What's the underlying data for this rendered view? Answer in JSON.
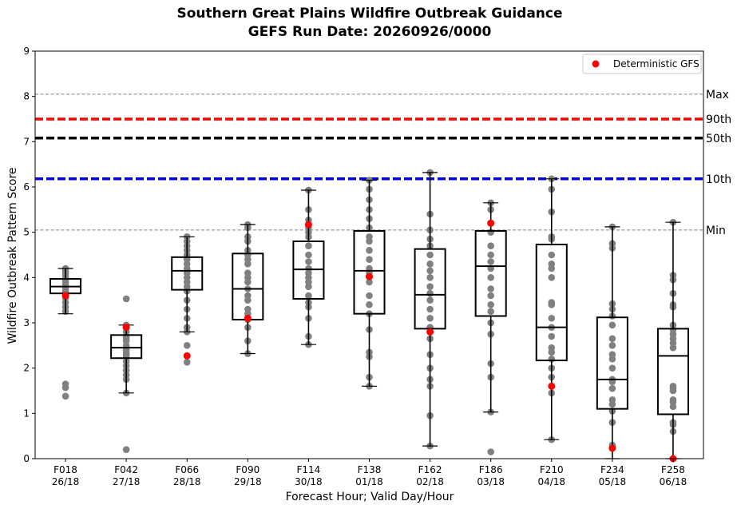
{
  "chart_data": {
    "type": "box",
    "title": "Southern Great Plains Wildfire Outbreak Guidance",
    "subtitle": "GEFS Run Date: 20260926/0000",
    "xlabel": "Forecast Hour; Valid Day/Hour",
    "ylabel": "Wildfire Outbreak Pattern Score",
    "ylim": [
      0,
      9
    ],
    "yticks": [
      "0",
      "1",
      "2",
      "3",
      "4",
      "5",
      "6",
      "7",
      "8",
      "9"
    ],
    "categories": [
      {
        "hour": "F018",
        "valid": "26/18"
      },
      {
        "hour": "F042",
        "valid": "27/18"
      },
      {
        "hour": "F066",
        "valid": "28/18"
      },
      {
        "hour": "F090",
        "valid": "29/18"
      },
      {
        "hour": "F114",
        "valid": "30/18"
      },
      {
        "hour": "F138",
        "valid": "01/18"
      },
      {
        "hour": "F162",
        "valid": "02/18"
      },
      {
        "hour": "F186",
        "valid": "03/18"
      },
      {
        "hour": "F210",
        "valid": "04/18"
      },
      {
        "hour": "F234",
        "valid": "05/18"
      },
      {
        "hour": "F258",
        "valid": "06/18"
      }
    ],
    "boxes": [
      {
        "whislo": 3.2,
        "q1": 3.65,
        "med": 3.8,
        "q3": 3.97,
        "whishi": 4.2
      },
      {
        "whislo": 1.45,
        "q1": 2.22,
        "med": 2.45,
        "q3": 2.73,
        "whishi": 2.95
      },
      {
        "whislo": 2.8,
        "q1": 3.73,
        "med": 4.15,
        "q3": 4.45,
        "whishi": 4.9
      },
      {
        "whislo": 2.32,
        "q1": 3.07,
        "med": 3.75,
        "q3": 4.53,
        "whishi": 5.17
      },
      {
        "whislo": 2.52,
        "q1": 3.53,
        "med": 4.18,
        "q3": 4.8,
        "whishi": 5.93
      },
      {
        "whislo": 1.6,
        "q1": 3.2,
        "med": 4.15,
        "q3": 5.03,
        "whishi": 6.15
      },
      {
        "whislo": 0.28,
        "q1": 2.87,
        "med": 3.62,
        "q3": 4.63,
        "whishi": 6.32
      },
      {
        "whislo": 1.03,
        "q1": 3.15,
        "med": 4.25,
        "q3": 5.03,
        "whishi": 5.65
      },
      {
        "whislo": 0.42,
        "q1": 2.17,
        "med": 2.9,
        "q3": 4.73,
        "whishi": 6.18
      },
      {
        "whislo": 0.0,
        "q1": 1.1,
        "med": 1.75,
        "q3": 3.12,
        "whishi": 5.12
      },
      {
        "whislo": 0.0,
        "q1": 0.98,
        "med": 2.27,
        "q3": 2.87,
        "whishi": 5.22
      }
    ],
    "members": [
      [
        4.2,
        4.15,
        4.1,
        4.05,
        4.0,
        3.95,
        3.9,
        3.85,
        3.8,
        3.8,
        3.75,
        3.7,
        3.65,
        3.55,
        3.45,
        3.35,
        3.25,
        1.65,
        1.57,
        1.38
      ],
      [
        3.53,
        2.95,
        2.9,
        2.8,
        2.7,
        2.65,
        2.6,
        2.5,
        2.45,
        2.4,
        2.35,
        2.3,
        2.25,
        2.15,
        2.05,
        1.95,
        1.85,
        1.75,
        1.45,
        0.2
      ],
      [
        4.9,
        4.8,
        4.7,
        4.6,
        4.5,
        4.4,
        4.3,
        4.2,
        4.15,
        4.1,
        4.0,
        3.9,
        3.8,
        3.7,
        3.5,
        3.3,
        3.1,
        2.9,
        2.8,
        2.5,
        2.13
      ],
      [
        5.17,
        5.1,
        4.9,
        4.8,
        4.6,
        4.5,
        4.4,
        4.3,
        4.1,
        4.0,
        3.9,
        3.75,
        3.6,
        3.5,
        3.3,
        3.2,
        3.07,
        2.9,
        2.6,
        2.32
      ],
      [
        5.93,
        5.5,
        5.27,
        5.1,
        5.0,
        4.9,
        4.7,
        4.5,
        4.35,
        4.2,
        4.1,
        4.0,
        3.9,
        3.8,
        3.6,
        3.45,
        3.35,
        3.1,
        2.7,
        2.52
      ],
      [
        6.15,
        5.95,
        5.72,
        5.5,
        5.3,
        5.1,
        4.9,
        4.8,
        4.6,
        4.4,
        4.2,
        4.1,
        3.9,
        3.6,
        3.4,
        3.2,
        2.85,
        2.35,
        2.25,
        1.8,
        1.6
      ],
      [
        6.32,
        5.4,
        5.05,
        4.85,
        4.7,
        4.5,
        4.3,
        4.15,
        4.0,
        3.8,
        3.65,
        3.5,
        3.3,
        3.1,
        2.9,
        2.65,
        2.3,
        2.0,
        1.75,
        1.6,
        0.95,
        0.28
      ],
      [
        5.65,
        5.5,
        5.2,
        5.0,
        4.7,
        4.5,
        4.35,
        4.2,
        4.0,
        3.75,
        3.6,
        3.4,
        3.25,
        3.0,
        2.75,
        2.1,
        1.8,
        1.03,
        0.15
      ],
      [
        6.18,
        5.95,
        5.45,
        4.9,
        4.85,
        4.5,
        4.3,
        4.2,
        4.0,
        3.45,
        3.4,
        3.1,
        2.9,
        2.7,
        2.45,
        2.35,
        2.2,
        2.0,
        1.8,
        1.6,
        1.45,
        0.42
      ],
      [
        5.12,
        4.75,
        4.65,
        3.42,
        3.3,
        3.15,
        2.95,
        2.65,
        2.5,
        2.3,
        2.2,
        2.0,
        1.75,
        1.7,
        1.55,
        1.3,
        1.2,
        1.05,
        0.8,
        0.3,
        0.25
      ],
      [
        5.22,
        4.05,
        3.95,
        3.65,
        3.4,
        3.35,
        2.95,
        2.85,
        2.75,
        2.65,
        2.55,
        2.45,
        1.6,
        1.55,
        1.5,
        1.3,
        1.25,
        1.15,
        0.8,
        0.75,
        0.6
      ]
    ],
    "deterministic": [
      3.6,
      2.9,
      2.27,
      3.1,
      5.17,
      4.02,
      2.8,
      5.2,
      1.6,
      0.23,
      0.0
    ],
    "reference_lines": [
      {
        "label": "Max",
        "value": 8.05,
        "color": "#808080",
        "style": "thin-dashed"
      },
      {
        "label": "90th",
        "value": 7.5,
        "color": "#ff0000",
        "style": "thick-dashed"
      },
      {
        "label": "50th",
        "value": 7.08,
        "color": "#000000",
        "style": "thick-dashed"
      },
      {
        "label": "10th",
        "value": 6.18,
        "color": "#0000dd",
        "style": "thick-dashed"
      },
      {
        "label": "Min",
        "value": 5.05,
        "color": "#808080",
        "style": "thin-dashed"
      }
    ],
    "legend": {
      "label": "Deterministic GFS",
      "placement": "top-right",
      "marker_color": "#ff0000"
    },
    "colors": {
      "member": "#808080",
      "deterministic": "#ff0000",
      "box": "#000000"
    }
  }
}
